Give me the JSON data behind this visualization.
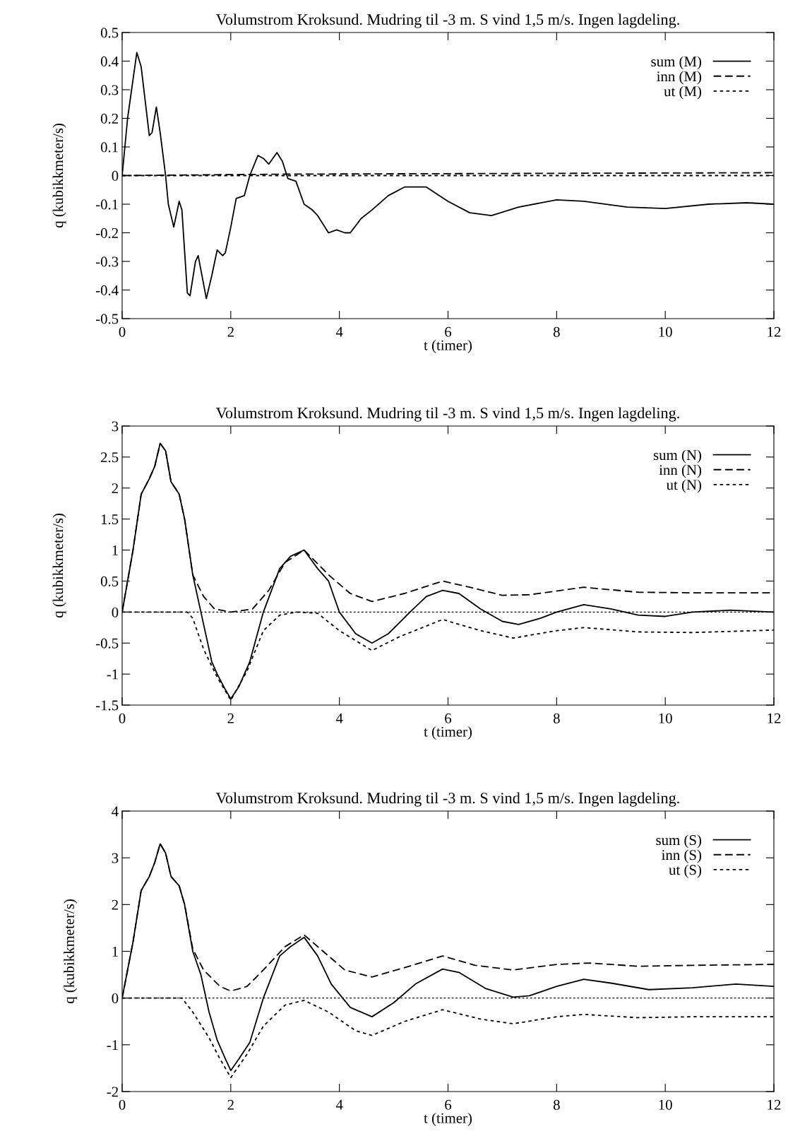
{
  "chart_data": [
    {
      "type": "line",
      "title": "Volumstrom Kroksund. Mudring til -3 m. S vind 1,5 m/s. Ingen lagdeling.",
      "xlabel": "t (timer)",
      "ylabel": "q (kubikkmeter/s)",
      "xlim": [
        0,
        12
      ],
      "xticks": [
        0,
        2,
        4,
        6,
        8,
        10,
        12
      ],
      "ylim": [
        -0.5,
        0.5
      ],
      "yticks": [
        -0.5,
        -0.4,
        -0.3,
        -0.2,
        -0.1,
        0,
        0.1,
        0.2,
        0.3,
        0.4,
        0.5
      ],
      "legend": "top right",
      "grid": false,
      "series": [
        {
          "name": "sum (M)",
          "color": "#000000",
          "line_style": "solid",
          "x": [
            0,
            0.1,
            0.27,
            0.35,
            0.5,
            0.55,
            0.63,
            0.7,
            0.8,
            0.85,
            0.95,
            1.05,
            1.1,
            1.2,
            1.25,
            1.35,
            1.4,
            1.5,
            1.55,
            1.65,
            1.75,
            1.85,
            1.9,
            2.0,
            2.1,
            2.25,
            2.35,
            2.5,
            2.6,
            2.7,
            2.85,
            2.95,
            3.05,
            3.2,
            3.35,
            3.5,
            3.6,
            3.8,
            3.95,
            4.1,
            4.2,
            4.4,
            4.6,
            4.9,
            5.2,
            5.6,
            6.0,
            6.4,
            6.8,
            7.3,
            8.0,
            8.5,
            9.3,
            10.0,
            10.8,
            11.5,
            12
          ],
          "values": [
            0,
            0.2,
            0.43,
            0.38,
            0.14,
            0.15,
            0.24,
            0.15,
            0.0,
            -0.1,
            -0.18,
            -0.09,
            -0.12,
            -0.41,
            -0.42,
            -0.3,
            -0.28,
            -0.38,
            -0.43,
            -0.35,
            -0.26,
            -0.28,
            -0.27,
            -0.18,
            -0.08,
            -0.07,
            0.0,
            0.07,
            0.06,
            0.04,
            0.08,
            0.05,
            -0.01,
            -0.02,
            -0.1,
            -0.12,
            -0.14,
            -0.2,
            -0.19,
            -0.2,
            -0.2,
            -0.15,
            -0.12,
            -0.07,
            -0.04,
            -0.04,
            -0.09,
            -0.13,
            -0.14,
            -0.11,
            -0.085,
            -0.09,
            -0.11,
            -0.115,
            -0.1,
            -0.095,
            -0.1
          ]
        },
        {
          "name": "inn (M)",
          "color": "#000000",
          "line_style": "dashed",
          "x": [
            0,
            3,
            12
          ],
          "values": [
            0,
            0.005,
            0.01
          ]
        },
        {
          "name": "ut (M)",
          "color": "#000000",
          "line_style": "dotted",
          "x": [
            0,
            12
          ],
          "values": [
            0,
            0
          ]
        }
      ]
    },
    {
      "type": "line",
      "title": "Volumstrom Kroksund. Mudring til -3 m. S vind 1,5 m/s. Ingen lagdeling.",
      "xlabel": "t (timer)",
      "ylabel": "q (kubikkmeter/s)",
      "xlim": [
        0,
        12
      ],
      "xticks": [
        0,
        2,
        4,
        6,
        8,
        10,
        12
      ],
      "ylim": [
        -1.5,
        3
      ],
      "yticks": [
        -1.5,
        -1,
        -0.5,
        0,
        0.5,
        1,
        1.5,
        2,
        2.5,
        3
      ],
      "legend": "top right",
      "grid": false,
      "ref_lines": [
        {
          "axis": "y",
          "value": 0,
          "line_style": "dotted",
          "color": "#000000"
        }
      ],
      "series": [
        {
          "name": "sum (N)",
          "color": "#000000",
          "line_style": "solid",
          "x": [
            0,
            0.2,
            0.35,
            0.5,
            0.6,
            0.7,
            0.8,
            0.9,
            1.05,
            1.15,
            1.3,
            1.5,
            1.65,
            1.75,
            1.9,
            2.0,
            2.15,
            2.35,
            2.6,
            2.9,
            3.1,
            3.35,
            3.6,
            3.8,
            4.0,
            4.3,
            4.6,
            4.9,
            5.3,
            5.6,
            5.9,
            6.2,
            6.6,
            7.0,
            7.3,
            7.7,
            8.0,
            8.5,
            9.0,
            9.5,
            10.0,
            10.5,
            11.2,
            12
          ],
          "values": [
            0,
            1.0,
            1.9,
            2.15,
            2.35,
            2.72,
            2.6,
            2.1,
            1.9,
            1.5,
            0.6,
            -0.2,
            -0.8,
            -1.0,
            -1.25,
            -1.4,
            -1.2,
            -0.8,
            0.0,
            0.7,
            0.9,
            1.0,
            0.7,
            0.5,
            0.0,
            -0.35,
            -0.5,
            -0.35,
            0.0,
            0.25,
            0.35,
            0.3,
            0.05,
            -0.15,
            -0.2,
            -0.1,
            0.0,
            0.12,
            0.05,
            -0.05,
            -0.07,
            0.0,
            0.03,
            0.0
          ]
        },
        {
          "name": "inn (N)",
          "color": "#000000",
          "line_style": "dashed",
          "x": [
            0,
            0.2,
            0.35,
            0.5,
            0.6,
            0.7,
            0.8,
            0.9,
            1.05,
            1.15,
            1.3,
            1.5,
            1.7,
            2.0,
            2.4,
            2.7,
            3.0,
            3.35,
            3.8,
            4.2,
            4.6,
            5.2,
            5.9,
            6.4,
            7.0,
            7.5,
            8.5,
            9.5,
            10.5,
            12
          ],
          "values": [
            0,
            1.0,
            1.9,
            2.15,
            2.35,
            2.72,
            2.6,
            2.1,
            1.9,
            1.5,
            0.6,
            0.25,
            0.05,
            0.0,
            0.05,
            0.35,
            0.8,
            1.0,
            0.6,
            0.3,
            0.17,
            0.3,
            0.5,
            0.4,
            0.27,
            0.28,
            0.4,
            0.32,
            0.31,
            0.31
          ]
        },
        {
          "name": "ut (N)",
          "color": "#000000",
          "line_style": "dotted",
          "x": [
            0,
            1.2,
            1.3,
            1.5,
            1.75,
            2.0,
            2.3,
            2.6,
            2.9,
            3.2,
            3.6,
            4.0,
            4.6,
            5.1,
            5.9,
            6.6,
            7.2,
            8.0,
            8.5,
            9.5,
            10.5,
            12
          ],
          "values": [
            0,
            0,
            -0.1,
            -0.6,
            -1.05,
            -1.42,
            -0.95,
            -0.3,
            -0.05,
            0.0,
            -0.02,
            -0.3,
            -0.62,
            -0.4,
            -0.12,
            -0.3,
            -0.42,
            -0.3,
            -0.25,
            -0.32,
            -0.33,
            -0.29
          ]
        }
      ]
    },
    {
      "type": "line",
      "title": "Volumstrom Kroksund. Mudring til -3 m. S vind 1,5 m/s. Ingen lagdeling.",
      "xlabel": "t (timer)",
      "ylabel": "q (kubikkmeter/s)",
      "xlim": [
        0,
        12
      ],
      "xticks": [
        0,
        2,
        4,
        6,
        8,
        10,
        12
      ],
      "ylim": [
        -2,
        4
      ],
      "yticks": [
        -2,
        -1,
        0,
        1,
        2,
        3,
        4
      ],
      "legend": "top right",
      "grid": false,
      "ref_lines": [
        {
          "axis": "y",
          "value": 0,
          "line_style": "dotted",
          "color": "#000000"
        }
      ],
      "series": [
        {
          "name": "sum (S)",
          "color": "#000000",
          "line_style": "solid",
          "x": [
            0,
            0.2,
            0.35,
            0.5,
            0.6,
            0.7,
            0.8,
            0.9,
            1.05,
            1.15,
            1.3,
            1.45,
            1.6,
            1.75,
            1.9,
            2.0,
            2.15,
            2.35,
            2.6,
            2.9,
            3.1,
            3.35,
            3.6,
            3.85,
            4.2,
            4.6,
            5.0,
            5.4,
            5.9,
            6.2,
            6.7,
            7.2,
            7.5,
            8.0,
            8.5,
            9.0,
            9.7,
            10.5,
            11.3,
            12
          ],
          "values": [
            0,
            1.2,
            2.3,
            2.6,
            2.9,
            3.3,
            3.1,
            2.6,
            2.4,
            2.0,
            1.0,
            0.5,
            -0.3,
            -0.9,
            -1.3,
            -1.55,
            -1.3,
            -0.95,
            0.0,
            0.9,
            1.1,
            1.3,
            0.9,
            0.3,
            -0.2,
            -0.4,
            -0.1,
            0.3,
            0.62,
            0.55,
            0.2,
            0.02,
            0.05,
            0.25,
            0.4,
            0.32,
            0.18,
            0.22,
            0.3,
            0.25
          ]
        },
        {
          "name": "inn (S)",
          "color": "#000000",
          "line_style": "dashed",
          "x": [
            0,
            0.2,
            0.35,
            0.5,
            0.6,
            0.7,
            0.8,
            0.9,
            1.05,
            1.15,
            1.3,
            1.5,
            1.8,
            2.0,
            2.3,
            2.6,
            3.0,
            3.35,
            3.7,
            4.1,
            4.6,
            5.2,
            5.9,
            6.5,
            7.2,
            8.0,
            8.6,
            9.5,
            10.5,
            12
          ],
          "values": [
            0,
            1.2,
            2.3,
            2.6,
            2.9,
            3.3,
            3.1,
            2.6,
            2.4,
            2.0,
            1.05,
            0.6,
            0.25,
            0.15,
            0.25,
            0.6,
            1.1,
            1.35,
            1.0,
            0.6,
            0.45,
            0.65,
            0.9,
            0.7,
            0.6,
            0.72,
            0.75,
            0.68,
            0.7,
            0.72
          ]
        },
        {
          "name": "ut (S)",
          "color": "#000000",
          "line_style": "dotted",
          "x": [
            0,
            1.1,
            1.3,
            1.6,
            1.8,
            2.0,
            2.3,
            2.6,
            3.0,
            3.35,
            3.8,
            4.3,
            4.6,
            5.2,
            5.9,
            6.6,
            7.2,
            8.0,
            8.5,
            9.5,
            10.5,
            12
          ],
          "values": [
            0,
            0,
            -0.3,
            -0.85,
            -1.3,
            -1.7,
            -1.2,
            -0.6,
            -0.15,
            -0.05,
            -0.3,
            -0.7,
            -0.8,
            -0.5,
            -0.25,
            -0.45,
            -0.55,
            -0.4,
            -0.35,
            -0.42,
            -0.4,
            -0.4
          ]
        }
      ]
    }
  ]
}
